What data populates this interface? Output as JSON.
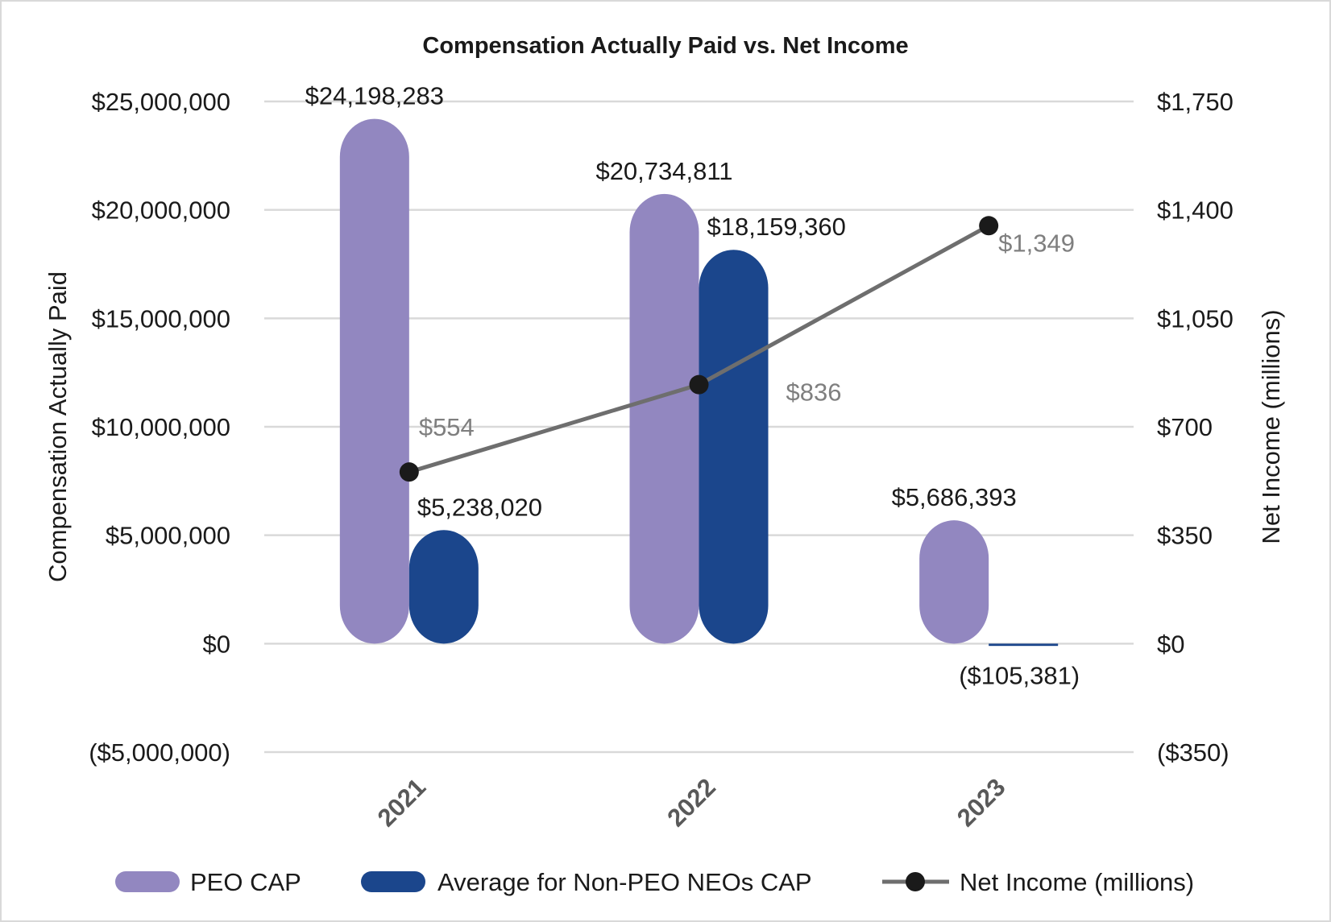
{
  "chart_data": {
    "type": "bar",
    "title": "Compensation Actually Paid vs. Net Income",
    "categories": [
      "2021",
      "2022",
      "2023"
    ],
    "ylabel": "Compensation Actually Paid",
    "y2label": "Net Income (millions)",
    "ylim": [
      -5000000,
      25000000
    ],
    "y2lim": [
      -350,
      1750
    ],
    "yticks": [
      "$25,000,000",
      "$20,000,000",
      "$15,000,000",
      "$10,000,000",
      "$5,000,000",
      "$0",
      "($5,000,000)"
    ],
    "yticks_values": [
      25000000,
      20000000,
      15000000,
      10000000,
      5000000,
      0,
      -5000000
    ],
    "y2ticks": [
      "$1,750",
      "$1,400",
      "$1,050",
      "$700",
      "$350",
      "$0",
      "($350)"
    ],
    "grid": true,
    "legend_position": "bottom",
    "series": [
      {
        "name": "PEO CAP",
        "kind": "bar",
        "axis": "left",
        "color": "#9287c0",
        "values": [
          24198283,
          20734811,
          5686393
        ],
        "labels": [
          "$24,198,283",
          "$20,734,811",
          "$5,686,393"
        ]
      },
      {
        "name": "Average for Non-PEO NEOs CAP",
        "kind": "bar",
        "axis": "left",
        "color": "#1b468c",
        "values": [
          5238020,
          18159360,
          -105381
        ],
        "labels": [
          "$5,238,020",
          "$18,159,360",
          "($105,381)"
        ]
      },
      {
        "name": "Net Income (millions)",
        "kind": "line",
        "axis": "right",
        "color": "#6e6e6e",
        "marker_color": "#1a1a1a",
        "values": [
          554,
          836,
          1349
        ],
        "labels": [
          "$554",
          "$836",
          "$1,349"
        ]
      }
    ]
  }
}
